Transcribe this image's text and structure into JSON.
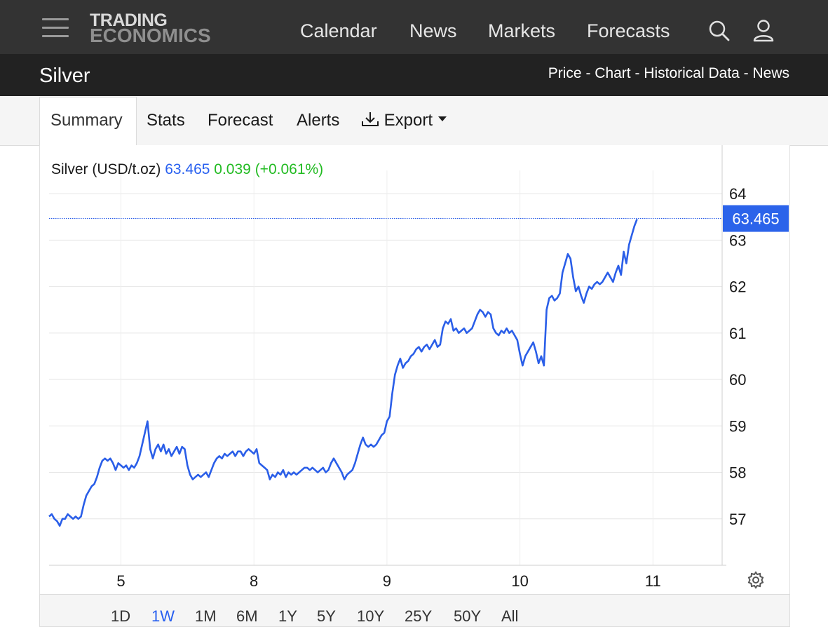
{
  "header": {
    "logo_line1": "TRADING",
    "logo_line2": "ECONOMICS",
    "nav": [
      "Calendar",
      "News",
      "Markets",
      "Forecasts"
    ],
    "icons": [
      "menu-icon",
      "search-icon",
      "user-icon"
    ]
  },
  "titlebar": {
    "title": "Silver",
    "links": "Price - Chart - Historical Data - News"
  },
  "tabs": {
    "summary": "Summary",
    "stats": "Stats",
    "forecast": "Forecast",
    "alerts": "Alerts",
    "export": "Export"
  },
  "quote": {
    "name": "Silver (USD/t.oz)",
    "price": "63.465",
    "change": "0.039",
    "change_pct": "(+0.061%)"
  },
  "ranges": [
    "1D",
    "1W",
    "1M",
    "6M",
    "1Y",
    "5Y",
    "10Y",
    "25Y",
    "50Y",
    "All"
  ],
  "active_range": "1W",
  "colors": {
    "line": "#2a5ee8",
    "price_text": "#2860f0",
    "change_text": "#22bb22",
    "last_price_tag": "#2b63ea"
  },
  "chart_data": {
    "type": "line",
    "title": "Silver (USD/t.oz)",
    "xlabel": "",
    "ylabel": "",
    "ylim": [
      56,
      64.5
    ],
    "yticks": [
      57,
      58,
      59,
      60,
      61,
      62,
      63,
      64
    ],
    "xticks": [
      {
        "label": "5",
        "x": 1.0
      },
      {
        "label": "8",
        "x": 2.0
      },
      {
        "label": "9",
        "x": 3.0
      },
      {
        "label": "10",
        "x": 4.0
      },
      {
        "label": "11",
        "x": 5.0
      }
    ],
    "xlim": [
      0.46,
      5.52
    ],
    "last_value": 63.465,
    "last_value_label": "63.465",
    "grid": true,
    "series": [
      {
        "values": [
          [
            0.46,
            57.05
          ],
          [
            0.48,
            57.1
          ],
          [
            0.5,
            57.0
          ],
          [
            0.52,
            56.95
          ],
          [
            0.54,
            56.85
          ],
          [
            0.56,
            57.0
          ],
          [
            0.58,
            57.0
          ],
          [
            0.6,
            57.1
          ],
          [
            0.62,
            57.05
          ],
          [
            0.64,
            57.0
          ],
          [
            0.66,
            57.05
          ],
          [
            0.68,
            57.0
          ],
          [
            0.7,
            57.05
          ],
          [
            0.72,
            57.3
          ],
          [
            0.74,
            57.5
          ],
          [
            0.76,
            57.6
          ],
          [
            0.78,
            57.7
          ],
          [
            0.8,
            57.75
          ],
          [
            0.82,
            57.9
          ],
          [
            0.84,
            58.1
          ],
          [
            0.86,
            58.25
          ],
          [
            0.88,
            58.3
          ],
          [
            0.9,
            58.25
          ],
          [
            0.92,
            58.3
          ],
          [
            0.94,
            58.2
          ],
          [
            0.96,
            58.05
          ],
          [
            0.98,
            58.2
          ],
          [
            1.0,
            58.15
          ],
          [
            1.02,
            58.1
          ],
          [
            1.04,
            58.15
          ],
          [
            1.06,
            58.05
          ],
          [
            1.08,
            58.15
          ],
          [
            1.1,
            58.1
          ],
          [
            1.12,
            58.2
          ],
          [
            1.14,
            58.35
          ],
          [
            1.16,
            58.6
          ],
          [
            1.18,
            58.85
          ],
          [
            1.2,
            59.1
          ],
          [
            1.22,
            58.5
          ],
          [
            1.24,
            58.3
          ],
          [
            1.26,
            58.5
          ],
          [
            1.28,
            58.6
          ],
          [
            1.3,
            58.45
          ],
          [
            1.32,
            58.6
          ],
          [
            1.34,
            58.4
          ],
          [
            1.36,
            58.5
          ],
          [
            1.38,
            58.35
          ],
          [
            1.4,
            58.45
          ],
          [
            1.42,
            58.55
          ],
          [
            1.44,
            58.4
          ],
          [
            1.46,
            58.55
          ],
          [
            1.48,
            58.5
          ],
          [
            1.5,
            58.15
          ],
          [
            1.52,
            57.95
          ],
          [
            1.54,
            57.85
          ],
          [
            1.56,
            57.9
          ],
          [
            1.58,
            57.95
          ],
          [
            1.6,
            57.9
          ],
          [
            1.62,
            57.95
          ],
          [
            1.64,
            58.0
          ],
          [
            1.66,
            57.9
          ],
          [
            1.68,
            58.05
          ],
          [
            1.7,
            58.2
          ],
          [
            1.72,
            58.3
          ],
          [
            1.74,
            58.35
          ],
          [
            1.76,
            58.3
          ],
          [
            1.78,
            58.4
          ],
          [
            1.8,
            58.35
          ],
          [
            1.82,
            58.4
          ],
          [
            1.84,
            58.45
          ],
          [
            1.86,
            58.35
          ],
          [
            1.88,
            58.45
          ],
          [
            1.9,
            58.45
          ],
          [
            1.92,
            58.35
          ],
          [
            1.94,
            58.45
          ],
          [
            1.96,
            58.5
          ],
          [
            1.98,
            58.45
          ],
          [
            2.0,
            58.4
          ],
          [
            2.02,
            58.5
          ],
          [
            2.04,
            58.2
          ],
          [
            2.06,
            58.15
          ],
          [
            2.08,
            58.1
          ],
          [
            2.1,
            58.05
          ],
          [
            2.12,
            57.85
          ],
          [
            2.14,
            57.95
          ],
          [
            2.16,
            57.9
          ],
          [
            2.18,
            58.0
          ],
          [
            2.2,
            57.95
          ],
          [
            2.22,
            58.05
          ],
          [
            2.24,
            57.9
          ],
          [
            2.26,
            58.0
          ],
          [
            2.28,
            57.95
          ],
          [
            2.3,
            58.0
          ],
          [
            2.32,
            57.95
          ],
          [
            2.34,
            58.0
          ],
          [
            2.36,
            58.05
          ],
          [
            2.38,
            58.1
          ],
          [
            2.4,
            58.1
          ],
          [
            2.42,
            58.05
          ],
          [
            2.44,
            58.1
          ],
          [
            2.46,
            58.05
          ],
          [
            2.48,
            58.0
          ],
          [
            2.5,
            58.05
          ],
          [
            2.52,
            58.1
          ],
          [
            2.54,
            58.0
          ],
          [
            2.56,
            58.05
          ],
          [
            2.58,
            58.2
          ],
          [
            2.6,
            58.3
          ],
          [
            2.62,
            58.2
          ],
          [
            2.64,
            58.1
          ],
          [
            2.66,
            58.0
          ],
          [
            2.68,
            57.85
          ],
          [
            2.7,
            57.95
          ],
          [
            2.72,
            58.0
          ],
          [
            2.74,
            58.05
          ],
          [
            2.76,
            58.2
          ],
          [
            2.78,
            58.4
          ],
          [
            2.8,
            58.6
          ],
          [
            2.82,
            58.75
          ],
          [
            2.84,
            58.6
          ],
          [
            2.86,
            58.55
          ],
          [
            2.88,
            58.6
          ],
          [
            2.9,
            58.55
          ],
          [
            2.92,
            58.6
          ],
          [
            2.94,
            58.7
          ],
          [
            2.96,
            58.8
          ],
          [
            2.98,
            58.85
          ],
          [
            3.0,
            59.1
          ],
          [
            3.02,
            59.2
          ],
          [
            3.04,
            59.7
          ],
          [
            3.06,
            60.1
          ],
          [
            3.08,
            60.3
          ],
          [
            3.1,
            60.45
          ],
          [
            3.12,
            60.25
          ],
          [
            3.14,
            60.35
          ],
          [
            3.16,
            60.4
          ],
          [
            3.18,
            60.5
          ],
          [
            3.2,
            60.55
          ],
          [
            3.22,
            60.65
          ],
          [
            3.24,
            60.7
          ],
          [
            3.26,
            60.6
          ],
          [
            3.28,
            60.7
          ],
          [
            3.3,
            60.75
          ],
          [
            3.32,
            60.65
          ],
          [
            3.34,
            60.75
          ],
          [
            3.36,
            60.85
          ],
          [
            3.38,
            60.7
          ],
          [
            3.4,
            60.75
          ],
          [
            3.42,
            61.1
          ],
          [
            3.44,
            61.25
          ],
          [
            3.46,
            61.2
          ],
          [
            3.48,
            61.3
          ],
          [
            3.5,
            61.05
          ],
          [
            3.52,
            61.1
          ],
          [
            3.54,
            61.0
          ],
          [
            3.56,
            61.05
          ],
          [
            3.58,
            61.1
          ],
          [
            3.6,
            61.0
          ],
          [
            3.62,
            61.05
          ],
          [
            3.64,
            61.1
          ],
          [
            3.66,
            61.25
          ],
          [
            3.68,
            61.4
          ],
          [
            3.7,
            61.5
          ],
          [
            3.72,
            61.45
          ],
          [
            3.74,
            61.35
          ],
          [
            3.76,
            61.45
          ],
          [
            3.78,
            61.4
          ],
          [
            3.8,
            61.1
          ],
          [
            3.82,
            61.0
          ],
          [
            3.84,
            60.95
          ],
          [
            3.86,
            61.05
          ],
          [
            3.88,
            61.0
          ],
          [
            3.9,
            61.1
          ],
          [
            3.92,
            61.0
          ],
          [
            3.94,
            61.05
          ],
          [
            3.96,
            60.95
          ],
          [
            3.98,
            60.85
          ],
          [
            4.0,
            60.55
          ],
          [
            4.02,
            60.3
          ],
          [
            4.04,
            60.5
          ],
          [
            4.06,
            60.6
          ],
          [
            4.08,
            60.7
          ],
          [
            4.1,
            60.8
          ],
          [
            4.12,
            60.6
          ],
          [
            4.14,
            60.35
          ],
          [
            4.16,
            60.5
          ],
          [
            4.18,
            60.3
          ],
          [
            4.2,
            61.5
          ],
          [
            4.22,
            61.75
          ],
          [
            4.24,
            61.8
          ],
          [
            4.26,
            61.7
          ],
          [
            4.28,
            61.75
          ],
          [
            4.3,
            61.85
          ],
          [
            4.32,
            62.3
          ],
          [
            4.34,
            62.5
          ],
          [
            4.36,
            62.7
          ],
          [
            4.38,
            62.6
          ],
          [
            4.4,
            62.2
          ],
          [
            4.42,
            61.9
          ],
          [
            4.44,
            62.0
          ],
          [
            4.46,
            61.8
          ],
          [
            4.48,
            61.65
          ],
          [
            4.5,
            61.85
          ],
          [
            4.52,
            62.0
          ],
          [
            4.54,
            61.95
          ],
          [
            4.56,
            62.05
          ],
          [
            4.58,
            62.1
          ],
          [
            4.6,
            62.05
          ],
          [
            4.62,
            62.1
          ],
          [
            4.64,
            62.2
          ],
          [
            4.66,
            62.3
          ],
          [
            4.68,
            62.2
          ],
          [
            4.7,
            62.1
          ],
          [
            4.72,
            62.3
          ],
          [
            4.74,
            62.45
          ],
          [
            4.76,
            62.25
          ],
          [
            4.78,
            62.75
          ],
          [
            4.8,
            62.5
          ],
          [
            4.82,
            62.9
          ],
          [
            4.84,
            63.1
          ],
          [
            4.86,
            63.3
          ],
          [
            4.88,
            63.45
          ]
        ]
      }
    ]
  }
}
